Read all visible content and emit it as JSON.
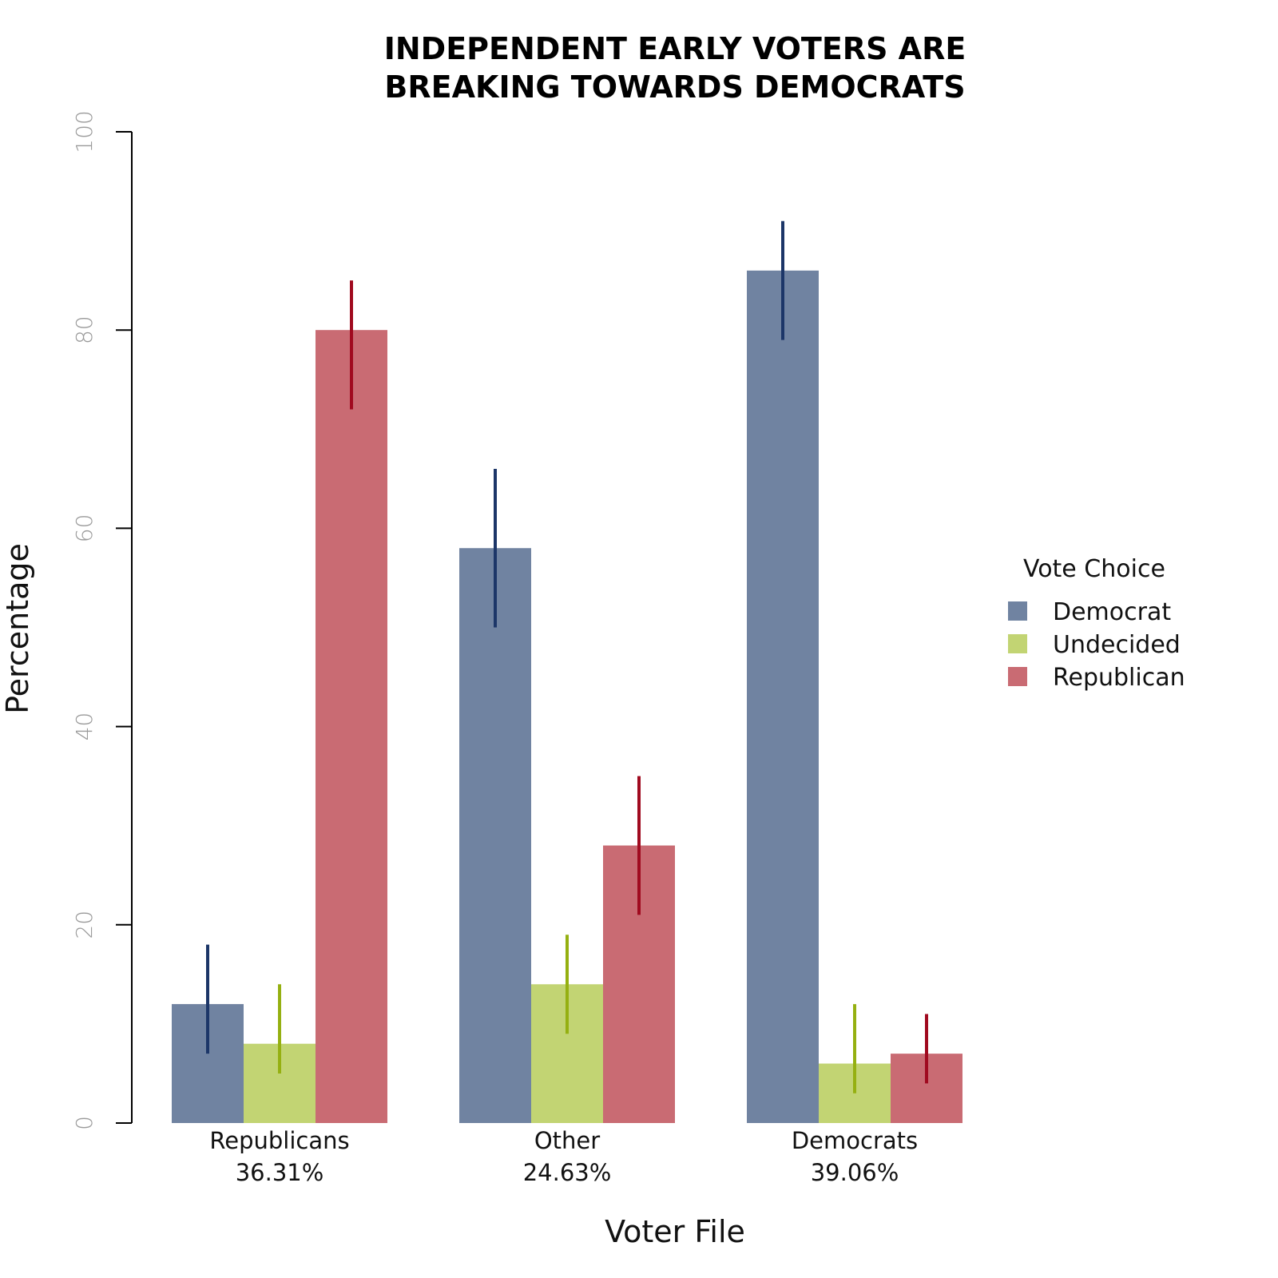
{
  "chart_data": {
    "type": "bar",
    "title_lines": [
      "INDEPENDENT EARLY VOTERS ARE",
      "BREAKING TOWARDS DEMOCRATS"
    ],
    "xlabel": "Voter File",
    "ylabel": "Percentage",
    "ylim": [
      0,
      100
    ],
    "yticks": [
      "0",
      "20",
      "40",
      "60",
      "80",
      "100"
    ],
    "categories": [
      {
        "name": "Republicans",
        "share": "36.31%"
      },
      {
        "name": "Other",
        "share": "24.63%"
      },
      {
        "name": "Democrats",
        "share": "39.06%"
      }
    ],
    "series": [
      {
        "name": "Democrat",
        "color": "#7083a1",
        "error_color": "#1c3668",
        "values": [
          12,
          58,
          86
        ],
        "error_low": [
          7,
          50,
          79
        ],
        "error_high": [
          18,
          66,
          91
        ]
      },
      {
        "name": "Undecided",
        "color": "#c2d473",
        "error_color": "#95b011",
        "values": [
          8,
          14,
          6
        ],
        "error_low": [
          5,
          9,
          3
        ],
        "error_high": [
          14,
          19,
          12
        ]
      },
      {
        "name": "Republican",
        "color": "#c96b73",
        "error_color": "#a00a1f",
        "values": [
          80,
          28,
          7
        ],
        "error_low": [
          72,
          21,
          4
        ],
        "error_high": [
          85,
          35,
          11
        ]
      }
    ],
    "legend": {
      "title": "Vote Choice",
      "position": "right"
    },
    "grid": false
  }
}
